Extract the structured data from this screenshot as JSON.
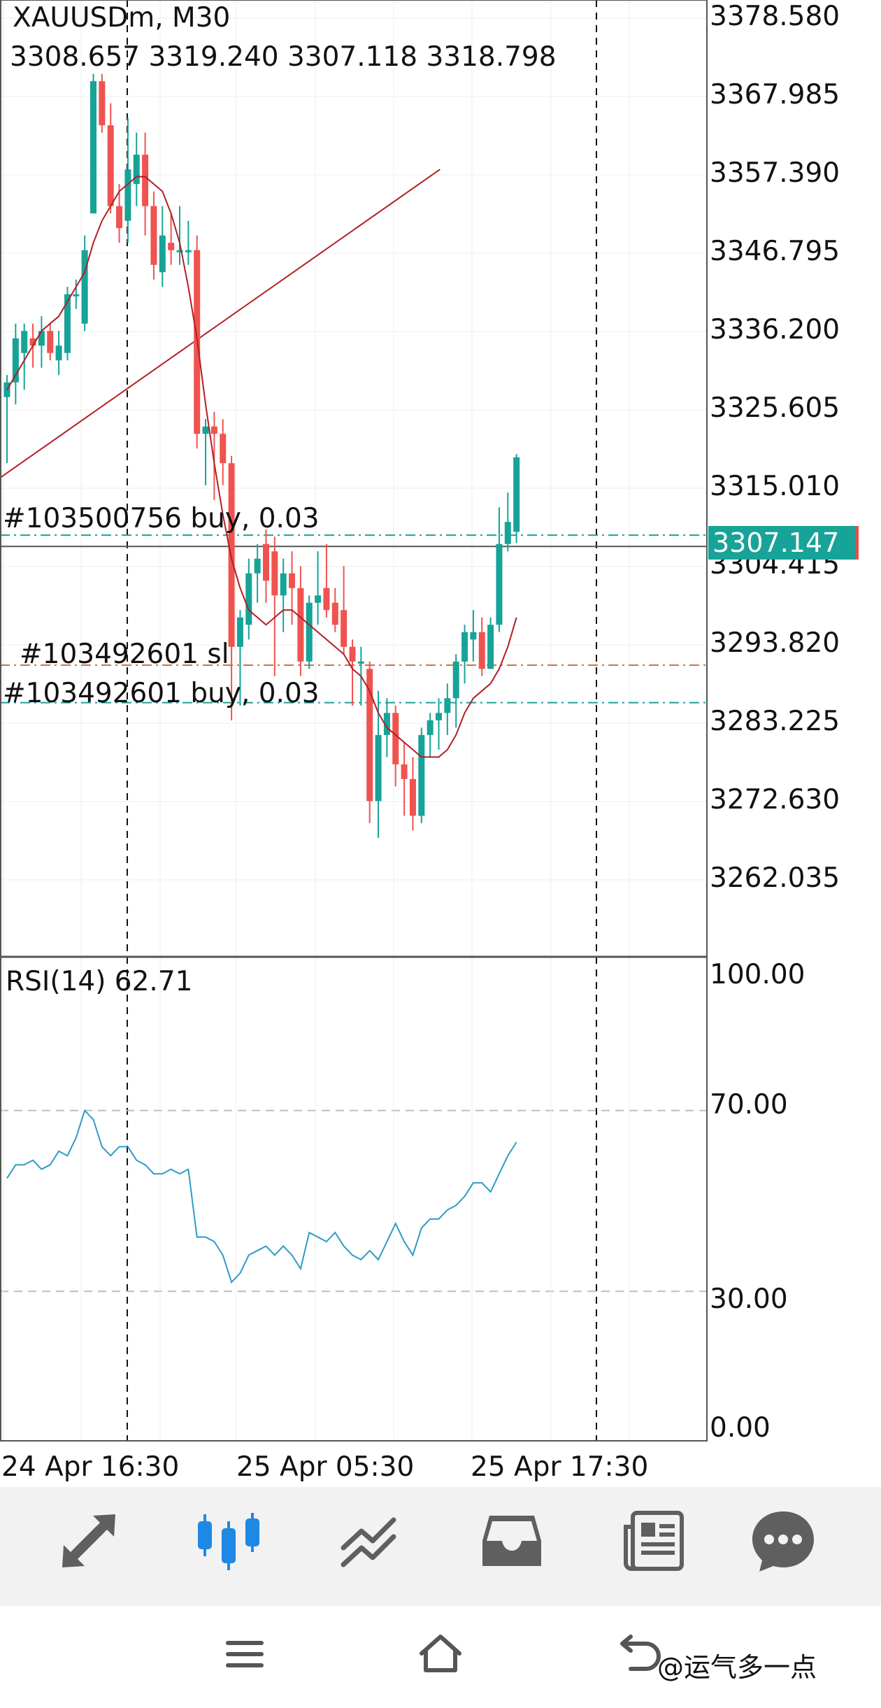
{
  "header": {
    "symbol_timeframe": "XAUUSDm, M30",
    "ohlc": "3308.657 3319.240 3307.118 3318.798"
  },
  "price_axis": [
    "3378.580",
    "3367.985",
    "3357.390",
    "3346.795",
    "3336.200",
    "3325.605",
    "3315.010",
    "3304.415",
    "3293.820",
    "3283.225",
    "3272.630",
    "3262.035"
  ],
  "current_price": "3307.147",
  "orders": {
    "buy1": "#103500756 buy, 0.03",
    "sl": "#103492601 sl",
    "buy2": "#103492601 buy, 0.03"
  },
  "rsi": {
    "label": "RSI(14) 62.71",
    "axis": [
      "100.00",
      "70.00",
      "30.00",
      "0.00"
    ]
  },
  "time_axis": [
    "24 Apr 16:30",
    "25 Apr 05:30",
    "25 Apr 17:30"
  ],
  "nav": {
    "items": [
      "trade-icon",
      "chart-icon",
      "history-icon",
      "inbox-icon",
      "news-icon",
      "chat-icon"
    ]
  },
  "system_nav": [
    "menu-icon",
    "home-icon",
    "back-icon"
  ],
  "watermark": "@运气多一点",
  "colors": {
    "bull": "#17a398",
    "bear": "#ef5350",
    "ma": "#b11f24",
    "trendline": "#b11f24",
    "rsi_line": "#2e9bc7",
    "buy_line": "#17a398",
    "sl_line": "#d0763a",
    "active_nav": "#1e88e5",
    "inactive_nav": "#5f5f5f"
  },
  "chart_data": {
    "type": "candlestick",
    "symbol": "XAUUSDm",
    "timeframe": "M30",
    "price_range": [
      3255,
      3380
    ],
    "candles": [
      {
        "o": 3327,
        "h": 3330,
        "l": 3318,
        "c": 3329
      },
      {
        "o": 3329,
        "h": 3337,
        "l": 3326,
        "c": 3335
      },
      {
        "o": 3333,
        "h": 3337,
        "l": 3328,
        "c": 3336
      },
      {
        "o": 3335,
        "h": 3337,
        "l": 3331,
        "c": 3334
      },
      {
        "o": 3334,
        "h": 3338,
        "l": 3331,
        "c": 3336
      },
      {
        "o": 3336,
        "h": 3337,
        "l": 3332,
        "c": 3333
      },
      {
        "o": 3332,
        "h": 3336,
        "l": 3330,
        "c": 3334
      },
      {
        "o": 3333,
        "h": 3342,
        "l": 3332,
        "c": 3341
      },
      {
        "o": 3341,
        "h": 3343,
        "l": 3339,
        "c": 3341
      },
      {
        "o": 3337,
        "h": 3349,
        "l": 3336,
        "c": 3347
      },
      {
        "o": 3352,
        "h": 3371,
        "l": 3352,
        "c": 3370
      },
      {
        "o": 3370,
        "h": 3371,
        "l": 3363,
        "c": 3364
      },
      {
        "o": 3364,
        "h": 3367,
        "l": 3352,
        "c": 3353
      },
      {
        "o": 3353,
        "h": 3356,
        "l": 3348,
        "c": 3350
      },
      {
        "o": 3351,
        "h": 3365,
        "l": 3348,
        "c": 3358
      },
      {
        "o": 3356,
        "h": 3363,
        "l": 3353,
        "c": 3360
      },
      {
        "o": 3360,
        "h": 3363,
        "l": 3349,
        "c": 3353
      },
      {
        "o": 3353,
        "h": 3355,
        "l": 3343,
        "c": 3345
      },
      {
        "o": 3344,
        "h": 3353,
        "l": 3342,
        "c": 3349
      },
      {
        "o": 3348,
        "h": 3352,
        "l": 3345,
        "c": 3347
      },
      {
        "o": 3347,
        "h": 3353,
        "l": 3345,
        "c": 3347
      },
      {
        "o": 3347,
        "h": 3351,
        "l": 3345,
        "c": 3347
      },
      {
        "o": 3347,
        "h": 3349,
        "l": 3320,
        "c": 3322
      },
      {
        "o": 3322,
        "h": 3324,
        "l": 3315,
        "c": 3323
      },
      {
        "o": 3323,
        "h": 3325,
        "l": 3313,
        "c": 3322
      },
      {
        "o": 3322,
        "h": 3324,
        "l": 3315,
        "c": 3318
      },
      {
        "o": 3318,
        "h": 3319,
        "l": 3283,
        "c": 3293
      },
      {
        "o": 3293,
        "h": 3298,
        "l": 3285,
        "c": 3297
      },
      {
        "o": 3296,
        "h": 3305,
        "l": 3294,
        "c": 3303
      },
      {
        "o": 3303,
        "h": 3307,
        "l": 3299,
        "c": 3305
      },
      {
        "o": 3307,
        "h": 3309,
        "l": 3299,
        "c": 3302
      },
      {
        "o": 3306,
        "h": 3308,
        "l": 3289,
        "c": 3300
      },
      {
        "o": 3300,
        "h": 3305,
        "l": 3295,
        "c": 3303
      },
      {
        "o": 3303,
        "h": 3306,
        "l": 3296,
        "c": 3301
      },
      {
        "o": 3301,
        "h": 3304,
        "l": 3289,
        "c": 3291
      },
      {
        "o": 3291,
        "h": 3300,
        "l": 3290,
        "c": 3299
      },
      {
        "o": 3299,
        "h": 3306,
        "l": 3296,
        "c": 3300
      },
      {
        "o": 3301,
        "h": 3307,
        "l": 3297,
        "c": 3298
      },
      {
        "o": 3299,
        "h": 3301,
        "l": 3295,
        "c": 3296
      },
      {
        "o": 3298,
        "h": 3304,
        "l": 3292,
        "c": 3293
      },
      {
        "o": 3293,
        "h": 3294,
        "l": 3285,
        "c": 3291
      },
      {
        "o": 3291,
        "h": 3293,
        "l": 3285,
        "c": 3291
      },
      {
        "o": 3290,
        "h": 3291,
        "l": 3269,
        "c": 3272
      },
      {
        "o": 3272,
        "h": 3287,
        "l": 3267,
        "c": 3281
      },
      {
        "o": 3281,
        "h": 3286,
        "l": 3278,
        "c": 3284
      },
      {
        "o": 3284,
        "h": 3285,
        "l": 3274,
        "c": 3277
      },
      {
        "o": 3277,
        "h": 3280,
        "l": 3270,
        "c": 3275
      },
      {
        "o": 3275,
        "h": 3278,
        "l": 3268,
        "c": 3270
      },
      {
        "o": 3270,
        "h": 3282,
        "l": 3269,
        "c": 3281
      },
      {
        "o": 3281,
        "h": 3284,
        "l": 3278,
        "c": 3283
      },
      {
        "o": 3283,
        "h": 3286,
        "l": 3279,
        "c": 3284
      },
      {
        "o": 3284,
        "h": 3288,
        "l": 3281,
        "c": 3286
      },
      {
        "o": 3286,
        "h": 3292,
        "l": 3282,
        "c": 3291
      },
      {
        "o": 3291,
        "h": 3296,
        "l": 3288,
        "c": 3295
      },
      {
        "o": 3294,
        "h": 3298,
        "l": 3291,
        "c": 3295
      },
      {
        "o": 3295,
        "h": 3297,
        "l": 3289,
        "c": 3290
      },
      {
        "o": 3290,
        "h": 3297,
        "l": 3290,
        "c": 3296
      },
      {
        "o": 3296,
        "h": 3312,
        "l": 3295,
        "c": 3307
      },
      {
        "o": 3307,
        "h": 3314,
        "l": 3306,
        "c": 3310
      },
      {
        "o": 3308.657,
        "h": 3319.24,
        "l": 3307.118,
        "c": 3318.798
      }
    ],
    "ma": [
      3328,
      3330,
      3332,
      3334,
      3336,
      3337,
      3338,
      3340,
      3342,
      3344,
      3348,
      3351,
      3353,
      3355,
      3356,
      3357,
      3357,
      3356,
      3355,
      3352,
      3348,
      3342,
      3335,
      3326,
      3318,
      3311,
      3305,
      3301,
      3298,
      3297,
      3296,
      3297,
      3298,
      3298,
      3297,
      3296,
      3295,
      3294,
      3293,
      3292,
      3290,
      3289,
      3287,
      3284,
      3282,
      3281,
      3280,
      3279,
      3278,
      3278,
      3278,
      3279,
      3281,
      3284,
      3286,
      3287,
      3288,
      3290,
      3293,
      3297
    ],
    "trendline": [
      {
        "x": 0,
        "p": 3316
      },
      {
        "x": 55,
        "p": 3358
      }
    ],
    "order_lines": [
      {
        "label": "#103500756 buy, 0.03",
        "price": 3308.2
      },
      {
        "label": "#103492601 sl",
        "price": 3290.5
      },
      {
        "label": "#103492601 buy, 0.03",
        "price": 3285.4
      }
    ],
    "current_price": 3307.147,
    "rsi": {
      "period": 14,
      "ylim": [
        0,
        100
      ],
      "levels": [
        70,
        30
      ],
      "values": [
        55,
        58,
        58,
        59,
        57,
        58,
        61,
        60,
        64,
        70,
        68,
        62,
        60,
        62,
        62,
        59,
        58,
        56,
        56,
        57,
        56,
        57,
        42,
        42,
        41,
        38,
        32,
        34,
        38,
        39,
        40,
        38,
        40,
        38,
        35,
        43,
        42,
        41,
        43,
        40,
        38,
        37,
        39,
        37,
        41,
        45,
        41,
        38,
        44,
        46,
        46,
        48,
        49,
        51,
        54,
        54,
        52,
        56,
        60,
        63
      ]
    }
  }
}
